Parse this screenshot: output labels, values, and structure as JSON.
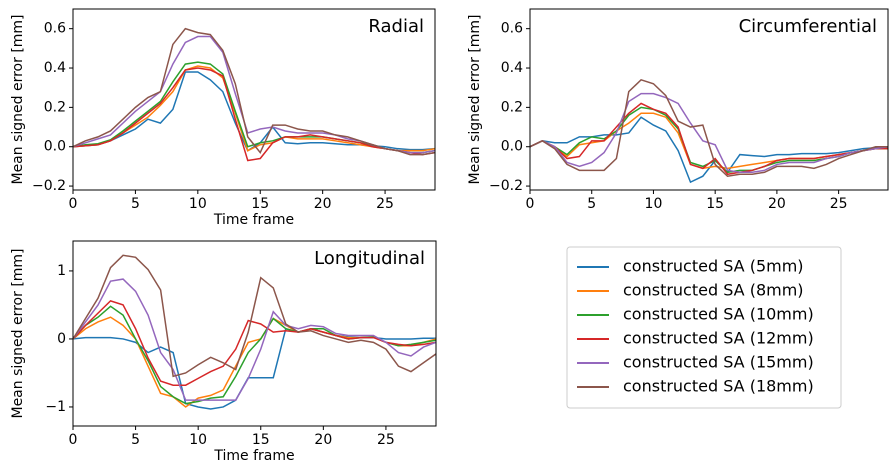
{
  "chart_data": [
    {
      "type": "line",
      "title": "Radial",
      "xlabel": "Time frame",
      "ylabel": "Mean signed error [mm]",
      "x": [
        0,
        1,
        2,
        3,
        4,
        5,
        6,
        7,
        8,
        9,
        10,
        11,
        12,
        13,
        14,
        15,
        16,
        17,
        18,
        19,
        20,
        21,
        22,
        23,
        24,
        25,
        26,
        27,
        28,
        29
      ],
      "xlim": [
        0,
        29
      ],
      "xticks": [
        0,
        5,
        10,
        15,
        20,
        25
      ],
      "ylim": [
        -0.22,
        0.7
      ],
      "yticks": [
        {
          "value": -0.2,
          "label": "−0.2"
        },
        {
          "value": 0,
          "label": "0.0"
        },
        0.2,
        0.4,
        0.6
      ],
      "series": [
        {
          "name": "constructed SA (5mm)",
          "color": "#1f77b4",
          "values": [
            0,
            0.005,
            0.01,
            0.03,
            0.06,
            0.09,
            0.14,
            0.12,
            0.19,
            0.38,
            0.38,
            0.34,
            0.28,
            0.12,
            -0.02,
            0.02,
            0.1,
            0.02,
            0.015,
            0.02,
            0.02,
            0.015,
            0.01,
            0.01,
            0.005,
            0,
            -0.01,
            -0.015,
            -0.015,
            -0.01
          ]
        },
        {
          "name": "constructed SA (8mm)",
          "color": "#ff7f0e",
          "values": [
            0,
            0.005,
            0.01,
            0.03,
            0.07,
            0.11,
            0.15,
            0.21,
            0.28,
            0.39,
            0.41,
            0.4,
            0.35,
            0.17,
            -0.02,
            0.01,
            0.02,
            0.05,
            0.04,
            0.04,
            0.04,
            0.03,
            0.02,
            0.01,
            0,
            -0.01,
            -0.02,
            -0.02,
            -0.02,
            -0.01
          ]
        },
        {
          "name": "constructed SA (10mm)",
          "color": "#2ca02c",
          "values": [
            0,
            0.01,
            0.015,
            0.035,
            0.08,
            0.13,
            0.18,
            0.23,
            0.33,
            0.42,
            0.43,
            0.42,
            0.37,
            0.18,
            0,
            0.02,
            0.03,
            0.05,
            0.05,
            0.05,
            0.05,
            0.04,
            0.03,
            0.02,
            0.01,
            -0.01,
            -0.02,
            -0.03,
            -0.03,
            -0.02
          ]
        },
        {
          "name": "constructed SA (12mm)",
          "color": "#d62728",
          "values": [
            0,
            0.005,
            0.01,
            0.03,
            0.07,
            0.12,
            0.17,
            0.22,
            0.3,
            0.39,
            0.4,
            0.39,
            0.36,
            0.14,
            -0.07,
            -0.06,
            0.02,
            0.05,
            0.05,
            0.06,
            0.05,
            0.04,
            0.03,
            0.02,
            0,
            -0.01,
            -0.02,
            -0.03,
            -0.04,
            -0.03
          ]
        },
        {
          "name": "constructed SA (15mm)",
          "color": "#9467bd",
          "values": [
            0,
            0.02,
            0.04,
            0.06,
            0.12,
            0.18,
            0.23,
            0.28,
            0.42,
            0.53,
            0.56,
            0.56,
            0.48,
            0.27,
            0.07,
            0.09,
            0.1,
            0.08,
            0.07,
            0.07,
            0.07,
            0.06,
            0.04,
            0.03,
            0.01,
            -0.01,
            -0.02,
            -0.03,
            -0.03,
            -0.02
          ]
        },
        {
          "name": "constructed SA (18mm)",
          "color": "#8c564b",
          "values": [
            0,
            0.03,
            0.05,
            0.08,
            0.14,
            0.2,
            0.25,
            0.28,
            0.52,
            0.6,
            0.58,
            0.57,
            0.49,
            0.32,
            0.05,
            -0.03,
            0.11,
            0.11,
            0.09,
            0.08,
            0.08,
            0.06,
            0.05,
            0.03,
            0.01,
            -0.01,
            -0.02,
            -0.04,
            -0.04,
            -0.03
          ]
        }
      ]
    },
    {
      "type": "line",
      "title": "Circumferential",
      "ylabel": "Mean signed error [mm]",
      "x": [
        0,
        1,
        2,
        3,
        4,
        5,
        6,
        7,
        8,
        9,
        10,
        11,
        12,
        13,
        14,
        15,
        16,
        17,
        18,
        19,
        20,
        21,
        22,
        23,
        24,
        25,
        26,
        27,
        28,
        29
      ],
      "xlim": [
        0,
        29
      ],
      "xticks": [
        0,
        5,
        10,
        15,
        20,
        25
      ],
      "ylim": [
        -0.22,
        0.7
      ],
      "yticks": [
        {
          "value": -0.2,
          "label": "−0.2"
        },
        {
          "value": 0,
          "label": "0.0"
        },
        0.2,
        0.4,
        0.6
      ],
      "series": [
        {
          "color": "#1f77b4",
          "values": [
            0,
            0.03,
            0.02,
            0.02,
            0.05,
            0.05,
            0.06,
            0.06,
            0.07,
            0.15,
            0.11,
            0.08,
            -0.02,
            -0.18,
            -0.15,
            -0.07,
            -0.13,
            -0.04,
            -0.045,
            -0.05,
            -0.04,
            -0.04,
            -0.035,
            -0.035,
            -0.035,
            -0.03,
            -0.02,
            -0.01,
            -0.005,
            -0.005
          ]
        },
        {
          "color": "#ff7f0e",
          "values": [
            0,
            0.03,
            0,
            -0.05,
            0.01,
            0.02,
            0.03,
            0.08,
            0.12,
            0.17,
            0.17,
            0.15,
            0.07,
            -0.09,
            -0.11,
            -0.1,
            -0.11,
            -0.1,
            -0.09,
            -0.08,
            -0.07,
            -0.06,
            -0.06,
            -0.06,
            -0.05,
            -0.04,
            -0.03,
            -0.02,
            -0.01,
            -0.01
          ]
        },
        {
          "color": "#2ca02c",
          "values": [
            0,
            0.03,
            0,
            -0.04,
            0.02,
            0.05,
            0.04,
            0.08,
            0.16,
            0.2,
            0.19,
            0.16,
            0.09,
            -0.08,
            -0.1,
            -0.07,
            -0.13,
            -0.12,
            -0.12,
            -0.1,
            -0.08,
            -0.07,
            -0.07,
            -0.07,
            -0.06,
            -0.05,
            -0.03,
            -0.02,
            -0.01,
            -0.01
          ]
        },
        {
          "color": "#d62728",
          "values": [
            0,
            0.03,
            0,
            -0.06,
            -0.05,
            0.03,
            0.03,
            0.1,
            0.17,
            0.22,
            0.19,
            0.17,
            0.1,
            -0.09,
            -0.11,
            -0.06,
            -0.14,
            -0.13,
            -0.12,
            -0.1,
            -0.07,
            -0.06,
            -0.06,
            -0.06,
            -0.05,
            -0.04,
            -0.03,
            -0.02,
            -0.01,
            -0.01
          ]
        },
        {
          "color": "#9467bd",
          "values": [
            0,
            0.03,
            0,
            -0.08,
            -0.1,
            -0.08,
            -0.03,
            0.07,
            0.23,
            0.27,
            0.27,
            0.25,
            0.22,
            0.12,
            0.03,
            0.01,
            -0.12,
            -0.13,
            -0.13,
            -0.12,
            -0.09,
            -0.08,
            -0.08,
            -0.08,
            -0.06,
            -0.05,
            -0.03,
            -0.02,
            -0.01,
            0
          ]
        },
        {
          "color": "#8c564b",
          "values": [
            0,
            0.03,
            -0.01,
            -0.09,
            -0.12,
            -0.12,
            -0.12,
            -0.06,
            0.28,
            0.34,
            0.32,
            0.26,
            0.13,
            0.1,
            0.11,
            -0.09,
            -0.15,
            -0.14,
            -0.14,
            -0.13,
            -0.1,
            -0.1,
            -0.1,
            -0.11,
            -0.09,
            -0.06,
            -0.04,
            -0.02,
            0,
            0
          ]
        }
      ]
    },
    {
      "type": "line",
      "title": "Longitudinal",
      "xlabel": "Time frame",
      "ylabel": "Mean signed error [mm]",
      "x": [
        0,
        1,
        2,
        3,
        4,
        5,
        6,
        7,
        8,
        9,
        10,
        11,
        12,
        13,
        14,
        15,
        16,
        17,
        18,
        19,
        20,
        21,
        22,
        23,
        24,
        25,
        26,
        27,
        28,
        29
      ],
      "xlim": [
        0,
        29
      ],
      "xticks": [
        0,
        5,
        10,
        15,
        20,
        25
      ],
      "ylim": [
        -1.28,
        1.44
      ],
      "yticks": [
        {
          "value": -1,
          "label": "−1"
        },
        0,
        1
      ],
      "series": [
        {
          "color": "#1f77b4",
          "values": [
            0,
            0.02,
            0.02,
            0.02,
            0,
            -0.05,
            -0.2,
            -0.12,
            -0.2,
            -0.95,
            -1.0,
            -1.03,
            -1.0,
            -0.9,
            -0.57,
            -0.57,
            -0.57,
            0.15,
            0.1,
            0.15,
            0.1,
            0.05,
            0.03,
            0.02,
            0.02,
            0,
            0,
            0,
            0.01,
            0.01
          ]
        },
        {
          "color": "#ff7f0e",
          "values": [
            0,
            0.15,
            0.25,
            0.32,
            0.2,
            0,
            -0.4,
            -0.8,
            -0.85,
            -1.0,
            -0.87,
            -0.83,
            -0.75,
            -0.4,
            -0.05,
            0,
            0.3,
            0.2,
            0.1,
            0.15,
            0.1,
            0.05,
            0.02,
            0.02,
            0.03,
            -0.05,
            -0.1,
            -0.1,
            -0.05,
            0
          ]
        },
        {
          "color": "#2ca02c",
          "values": [
            0,
            0.2,
            0.32,
            0.48,
            0.35,
            0,
            -0.32,
            -0.7,
            -0.85,
            -0.95,
            -0.92,
            -0.87,
            -0.85,
            -0.55,
            -0.2,
            0,
            0.3,
            0.15,
            0.1,
            0.15,
            0.15,
            0.05,
            0,
            0.02,
            0.03,
            -0.05,
            -0.1,
            -0.08,
            -0.05,
            -0.02
          ]
        },
        {
          "color": "#d62728",
          "values": [
            0,
            0.2,
            0.38,
            0.56,
            0.5,
            0.15,
            -0.28,
            -0.62,
            -0.68,
            -0.68,
            -0.58,
            -0.48,
            -0.4,
            -0.15,
            0.27,
            0.22,
            0.1,
            0.12,
            0.1,
            0.15,
            0.1,
            0.05,
            0,
            0.02,
            0.02,
            -0.05,
            -0.08,
            -0.1,
            -0.08,
            -0.05
          ]
        },
        {
          "color": "#9467bd",
          "values": [
            0,
            0.25,
            0.5,
            0.85,
            0.88,
            0.7,
            0.35,
            -0.2,
            -0.45,
            -0.9,
            -0.9,
            -0.9,
            -0.9,
            -0.9,
            -0.58,
            -0.15,
            0.4,
            0.2,
            0.15,
            0.2,
            0.18,
            0.08,
            0.05,
            0.05,
            0.05,
            -0.05,
            -0.2,
            -0.25,
            -0.12,
            -0.05
          ]
        },
        {
          "color": "#8c564b",
          "values": [
            0,
            0.3,
            0.6,
            1.05,
            1.23,
            1.2,
            1.02,
            0.72,
            -0.55,
            -0.5,
            -0.38,
            -0.27,
            -0.35,
            -0.45,
            0.1,
            0.9,
            0.75,
            0.22,
            0.1,
            0.12,
            0.05,
            0,
            -0.05,
            -0.02,
            -0.05,
            -0.15,
            -0.4,
            -0.48,
            -0.35,
            -0.22
          ]
        }
      ]
    }
  ]
}
